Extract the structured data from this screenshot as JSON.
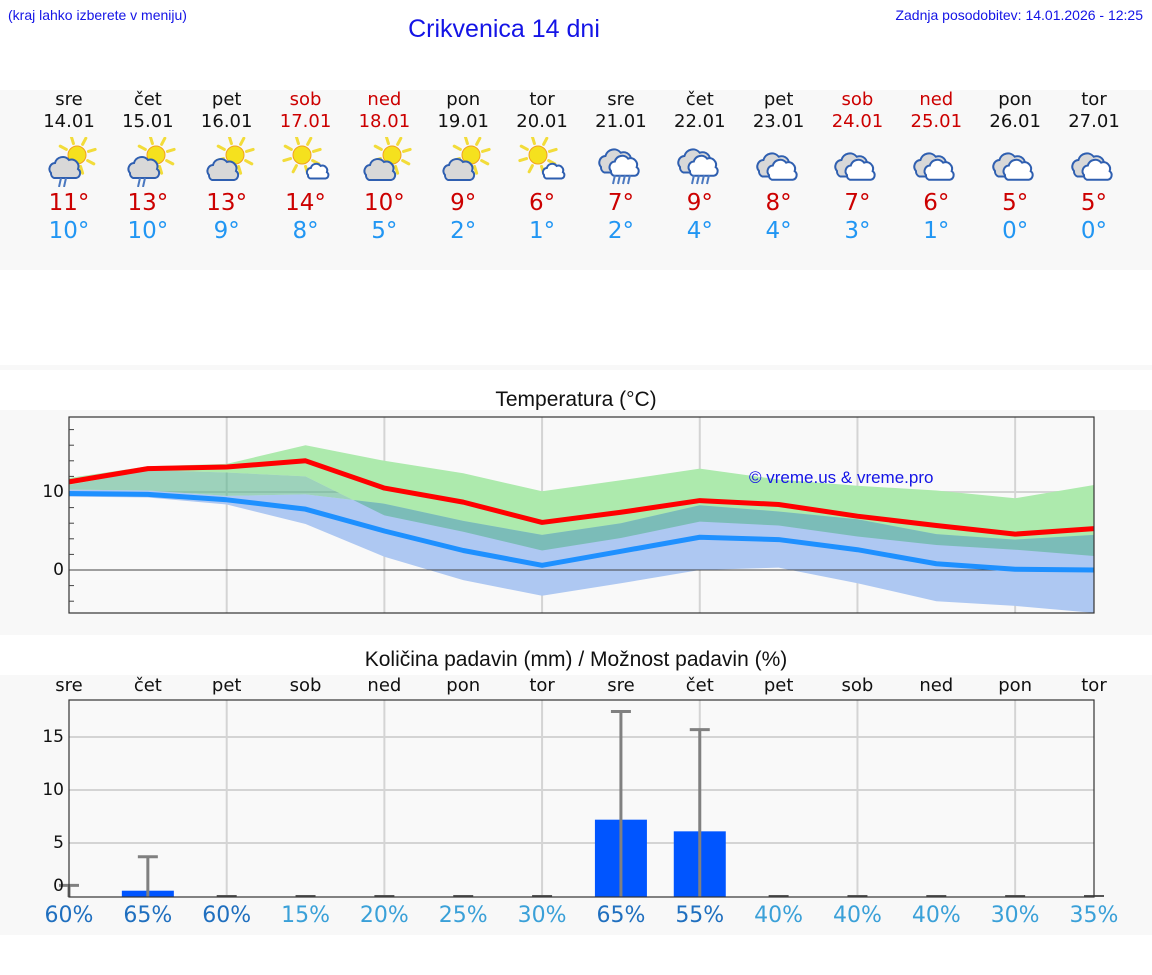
{
  "header": {
    "hint": "(kraj lahko izberete v meniju)",
    "title": "Crikvenica 14 dni",
    "updated": "Zadnja posodobitev: 14.01.2026 - 12:25"
  },
  "colors": {
    "header_text": "#1414e6",
    "max_temp": "#cc0000",
    "min_temp": "#2196f3",
    "weekend": "#cc0000",
    "max_line": "#ff0000",
    "min_line": "#1e90ff",
    "max_band": "#adeaad",
    "min_band": "#aec8f2",
    "precip_bar": "#0055ff",
    "precip_error": "#808080"
  },
  "forecast": [
    {
      "day": "sre",
      "date": "14.01",
      "icon": "sun-cloud-light-rain-icon",
      "max": "11°",
      "min": "10°",
      "weekend": false
    },
    {
      "day": "čet",
      "date": "15.01",
      "icon": "sun-cloud-light-rain-icon",
      "max": "13°",
      "min": "10°",
      "weekend": false
    },
    {
      "day": "pet",
      "date": "16.01",
      "icon": "partly-cloudy-icon",
      "max": "13°",
      "min": "9°",
      "weekend": false
    },
    {
      "day": "sob",
      "date": "17.01",
      "icon": "mostly-sunny-icon",
      "max": "14°",
      "min": "8°",
      "weekend": true
    },
    {
      "day": "ned",
      "date": "18.01",
      "icon": "partly-cloudy-icon",
      "max": "10°",
      "min": "5°",
      "weekend": true
    },
    {
      "day": "pon",
      "date": "19.01",
      "icon": "partly-cloudy-icon",
      "max": "9°",
      "min": "2°",
      "weekend": false
    },
    {
      "day": "tor",
      "date": "20.01",
      "icon": "mostly-sunny-icon",
      "max": "6°",
      "min": "1°",
      "weekend": false
    },
    {
      "day": "sre",
      "date": "21.01",
      "icon": "cloudy-rain-icon",
      "max": "7°",
      "min": "2°",
      "weekend": false
    },
    {
      "day": "čet",
      "date": "22.01",
      "icon": "cloudy-rain-icon",
      "max": "9°",
      "min": "4°",
      "weekend": false
    },
    {
      "day": "pet",
      "date": "23.01",
      "icon": "cloudy-icon",
      "max": "8°",
      "min": "4°",
      "weekend": false
    },
    {
      "day": "sob",
      "date": "24.01",
      "icon": "cloudy-icon",
      "max": "7°",
      "min": "3°",
      "weekend": true
    },
    {
      "day": "ned",
      "date": "25.01",
      "icon": "cloudy-icon",
      "max": "6°",
      "min": "1°",
      "weekend": true
    },
    {
      "day": "pon",
      "date": "26.01",
      "icon": "cloudy-icon",
      "max": "5°",
      "min": "0°",
      "weekend": false
    },
    {
      "day": "tor",
      "date": "27.01",
      "icon": "cloudy-icon",
      "max": "5°",
      "min": "0°",
      "weekend": false
    }
  ],
  "chart_data": [
    {
      "type": "line",
      "title": "Temperatura (°C)",
      "xlabel": "",
      "ylabel": "",
      "categories": [
        "14.01",
        "15.01",
        "16.01",
        "17.01",
        "18.01",
        "19.01",
        "20.01",
        "21.01",
        "22.01",
        "23.01",
        "24.01",
        "25.01",
        "26.01",
        "27.01"
      ],
      "ylim": [
        -5.5,
        19.5
      ],
      "yticks": [
        0,
        10
      ],
      "grid": true,
      "watermark": "© vreme.us & vreme.pro",
      "series": [
        {
          "name": "max",
          "values": [
            11.3,
            13.0,
            13.2,
            14.0,
            10.5,
            8.7,
            6.1,
            7.4,
            8.9,
            8.4,
            6.9,
            5.7,
            4.6,
            5.3
          ]
        },
        {
          "name": "min",
          "values": [
            9.8,
            9.7,
            9.0,
            7.8,
            5.0,
            2.5,
            0.6,
            2.4,
            4.2,
            3.9,
            2.6,
            0.8,
            0.1,
            0.0
          ]
        },
        {
          "name": "max_range_upper",
          "values": [
            11.8,
            13.3,
            13.6,
            16.0,
            14.0,
            12.4,
            10.1,
            11.5,
            13.0,
            11.6,
            10.8,
            10.2,
            9.2,
            10.9
          ]
        },
        {
          "name": "max_range_lower",
          "values": [
            10.9,
            12.8,
            12.5,
            12.0,
            7.0,
            4.9,
            2.5,
            4.1,
            6.2,
            5.7,
            4.3,
            3.2,
            2.6,
            1.8
          ]
        },
        {
          "name": "min_range_upper",
          "values": [
            10.3,
            10.2,
            9.5,
            9.7,
            8.5,
            6.3,
            4.5,
            6.0,
            8.3,
            7.5,
            6.5,
            4.6,
            3.9,
            4.5
          ]
        },
        {
          "name": "min_range_lower",
          "values": [
            9.4,
            9.3,
            8.4,
            5.9,
            1.7,
            -1.3,
            -3.3,
            -1.7,
            0.0,
            0.3,
            -1.7,
            -4.0,
            -4.6,
            -5.5
          ]
        }
      ]
    },
    {
      "type": "bar",
      "title": "Količina padavin (mm) / Možnost padavin (%)",
      "xlabel": "",
      "ylabel": "",
      "categories": [
        "sre",
        "čet",
        "pet",
        "sob",
        "ned",
        "pon",
        "tor",
        "sre",
        "čet",
        "pet",
        "sob",
        "ned",
        "pon",
        "tor"
      ],
      "ylim": [
        -1,
        18
      ],
      "yticks": [
        0,
        5,
        10,
        15
      ],
      "grid": true,
      "series": [
        {
          "name": "precipitation_mm",
          "values": [
            0.0,
            0.5,
            0.0,
            0.0,
            0.0,
            0.0,
            0.0,
            7.2,
            6.1,
            0.0,
            0.0,
            0.0,
            0.0,
            0.0
          ]
        },
        {
          "name": "precipitation_max_mm",
          "values": [
            1.0,
            3.7,
            0.0,
            0.0,
            0.0,
            0.0,
            0.0,
            17.4,
            15.7,
            0.0,
            0.0,
            0.0,
            0.0,
            0.0
          ]
        },
        {
          "name": "probability_pct",
          "values": [
            60,
            65,
            60,
            15,
            20,
            25,
            30,
            65,
            55,
            40,
            40,
            40,
            30,
            35
          ]
        }
      ]
    }
  ],
  "temp_chart": {
    "title": "Temperatura (°C)",
    "ytick_10": "10",
    "ytick_0": "0",
    "watermark": "© vreme.us & vreme.pro"
  },
  "precip_chart": {
    "title": "Količina padavin (mm) / Možnost padavin (%)",
    "days": [
      "sre",
      "čet",
      "pet",
      "sob",
      "ned",
      "pon",
      "tor",
      "sre",
      "čet",
      "pet",
      "sob",
      "ned",
      "pon",
      "tor"
    ],
    "yticks": [
      "15",
      "10",
      "5",
      "0"
    ],
    "probabilities": [
      "60%",
      "65%",
      "60%",
      "15%",
      "20%",
      "25%",
      "30%",
      "65%",
      "55%",
      "40%",
      "40%",
      "40%",
      "30%",
      "35%"
    ]
  }
}
